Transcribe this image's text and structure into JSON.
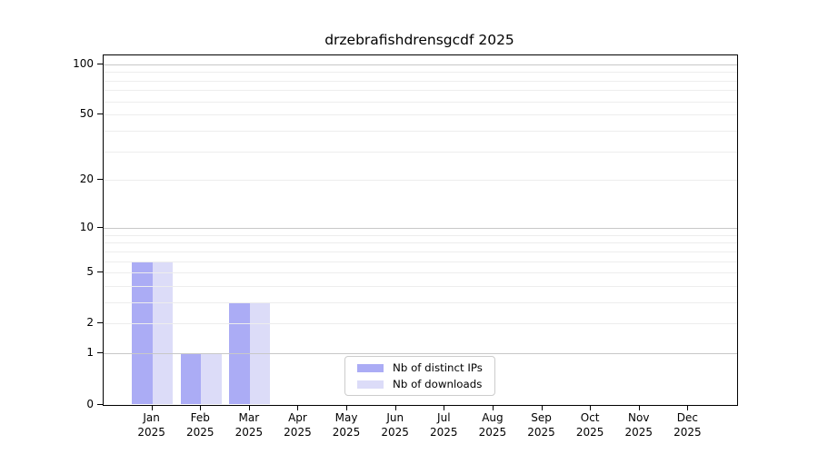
{
  "chart_data": {
    "type": "bar",
    "title": "drzebrafishdrensgcdf 2025",
    "year": "2025",
    "categories": [
      "Jan",
      "Feb",
      "Mar",
      "Apr",
      "May",
      "Jun",
      "Jul",
      "Aug",
      "Sep",
      "Oct",
      "Nov",
      "Dec"
    ],
    "series": [
      {
        "name": "Nb of distinct IPs",
        "color": "#abacf5",
        "values": [
          6,
          1,
          3,
          0,
          0,
          0,
          0,
          0,
          0,
          0,
          0,
          0
        ]
      },
      {
        "name": "Nb of downloads",
        "color": "#dcdcf8",
        "values": [
          6,
          1,
          3,
          0,
          0,
          0,
          0,
          0,
          0,
          0,
          0,
          0
        ]
      }
    ],
    "xlabel": "",
    "ylabel": "",
    "y_axis": {
      "scale": "log10(1+x)",
      "ylim": [
        0,
        113
      ],
      "major_ticks": [
        0,
        1,
        2,
        5,
        10,
        20,
        50,
        100
      ],
      "minor_gridlines": [
        3,
        4,
        6,
        7,
        8,
        9,
        30,
        40,
        60,
        70,
        80,
        90
      ],
      "decade_gridlines": [
        1,
        10,
        100
      ]
    },
    "grid": true,
    "legend_position": "lower center inside plot",
    "colors": {
      "grid_minor": "#ededed",
      "grid_decade": "#c8c8c8",
      "axis": "#000000",
      "background": "#ffffff"
    }
  }
}
